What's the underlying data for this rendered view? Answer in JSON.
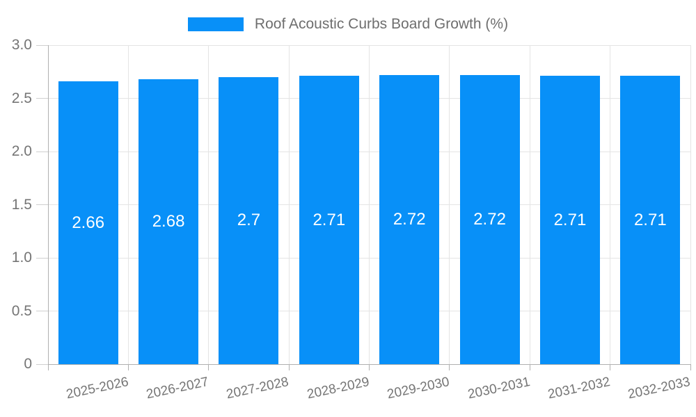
{
  "chart_data": {
    "type": "bar",
    "title": "Roof Acoustic Curbs Board Growth (%)",
    "categories": [
      "2025-2026",
      "2026-2027",
      "2027-2028",
      "2028-2029",
      "2029-2030",
      "2030-2031",
      "2031-2032",
      "2032-2033"
    ],
    "values": [
      2.66,
      2.68,
      2.7,
      2.71,
      2.72,
      2.72,
      2.71,
      2.71
    ],
    "value_labels": [
      "2.66",
      "2.68",
      "2.7",
      "2.71",
      "2.72",
      "2.72",
      "2.71",
      "2.71"
    ],
    "xlabel": "",
    "ylabel": "",
    "ylim": [
      0,
      3
    ],
    "y_ticks": [
      0,
      0.5,
      1,
      1.5,
      2,
      2.5,
      3
    ],
    "y_tick_labels": [
      "0",
      "0.5",
      "1.0",
      "1.5",
      "2.0",
      "2.5",
      "3.0"
    ],
    "grid": true,
    "legend_position": "top-center",
    "colors": {
      "bar": "#0890f8",
      "grid": "#e4e4e4",
      "axis": "#b0b0b0",
      "tick": "#cfcfcf",
      "label": "#757575",
      "legend_text": "#6e6e6e",
      "value_label": "#ffffff",
      "background": "#ffffff"
    }
  }
}
